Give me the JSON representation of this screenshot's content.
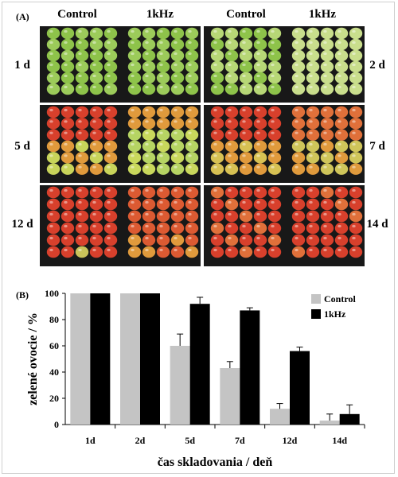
{
  "panel_a": {
    "label": "(A)",
    "col_headers": [
      "Control",
      "1kHz",
      "Control",
      "1kHz"
    ],
    "day_labels": [
      "1 d",
      "2 d",
      "5 d",
      "7 d",
      "12 d",
      "14 d"
    ],
    "colors": {
      "background": "#181818",
      "green": "#8ec34a",
      "pale_green": "#c9de8c",
      "orange": "#e09a3c",
      "red": "#d8402c"
    }
  },
  "panel_b": {
    "label": "(B)"
  },
  "chart_data": {
    "type": "bar",
    "xlabel": "čas skladovania / deň",
    "ylabel": "zelené ovocie / %",
    "categories": [
      "1d",
      "2d",
      "5d",
      "7d",
      "12d",
      "14d"
    ],
    "ylim": [
      0,
      100
    ],
    "yticks": [
      0,
      20,
      40,
      60,
      80,
      100
    ],
    "legend_position": "top-right",
    "series": [
      {
        "name": "Control",
        "color": "#c4c4c4",
        "values": [
          100,
          100,
          60,
          43,
          12,
          3
        ],
        "errors": [
          0,
          0,
          9,
          5,
          4,
          5
        ]
      },
      {
        "name": "1kHz",
        "color": "#000000",
        "values": [
          100,
          100,
          92,
          87,
          56,
          8
        ],
        "errors": [
          0,
          0,
          5,
          2,
          3,
          7
        ]
      }
    ]
  }
}
